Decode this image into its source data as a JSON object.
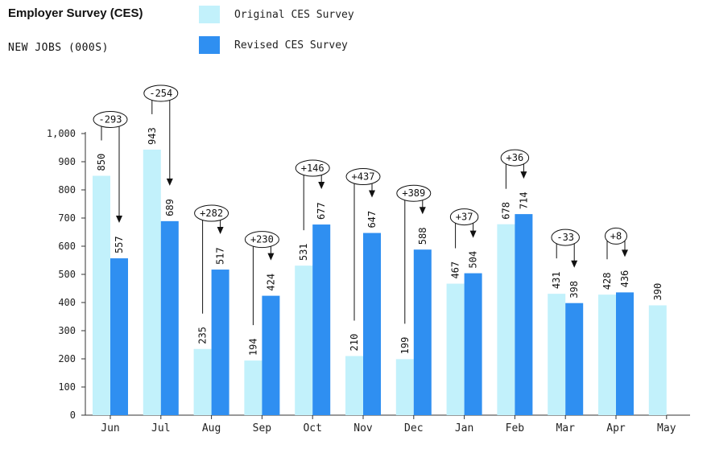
{
  "title": "Employer Survey (CES)",
  "subtitle": "NEW JOBS (000S)",
  "colors": {
    "original": "#c2f1fb",
    "revised": "#2f8ff1"
  },
  "chart_data": {
    "type": "bar",
    "categories": [
      "Jun",
      "Jul",
      "Aug",
      "Sep",
      "Oct",
      "Nov",
      "Dec",
      "Jan",
      "Feb",
      "Mar",
      "Apr",
      "May"
    ],
    "series": [
      {
        "name": "Original CES Survey",
        "values": [
          850,
          943,
          235,
          194,
          531,
          210,
          199,
          467,
          678,
          431,
          428,
          390
        ]
      },
      {
        "name": "Revised CES Survey",
        "values": [
          557,
          689,
          517,
          424,
          677,
          647,
          588,
          504,
          714,
          398,
          436,
          null
        ]
      }
    ],
    "value_labels": {
      "original": [
        "850",
        "943",
        "235",
        "194",
        "531",
        "210",
        "199",
        "467",
        "678",
        "431",
        "428",
        "390"
      ],
      "revised": [
        "557",
        "689",
        "517",
        "424",
        "677",
        "647",
        "588",
        "504",
        "714",
        "398",
        "436",
        ""
      ]
    },
    "revisions": [
      "-293",
      "-254",
      "+282",
      "+230",
      "+146",
      "+437",
      "+389",
      "+37",
      "+36",
      "-33",
      "+8",
      ""
    ],
    "ylim": [
      0,
      1000
    ],
    "yticks": [
      0,
      100,
      200,
      300,
      400,
      500,
      600,
      700,
      800,
      900,
      1000
    ],
    "ytick_labels": [
      "0",
      "100",
      "200",
      "300",
      "400",
      "500",
      "600",
      "700",
      "800",
      "900",
      "1,000"
    ],
    "grid": false,
    "legend_position": "top"
  }
}
